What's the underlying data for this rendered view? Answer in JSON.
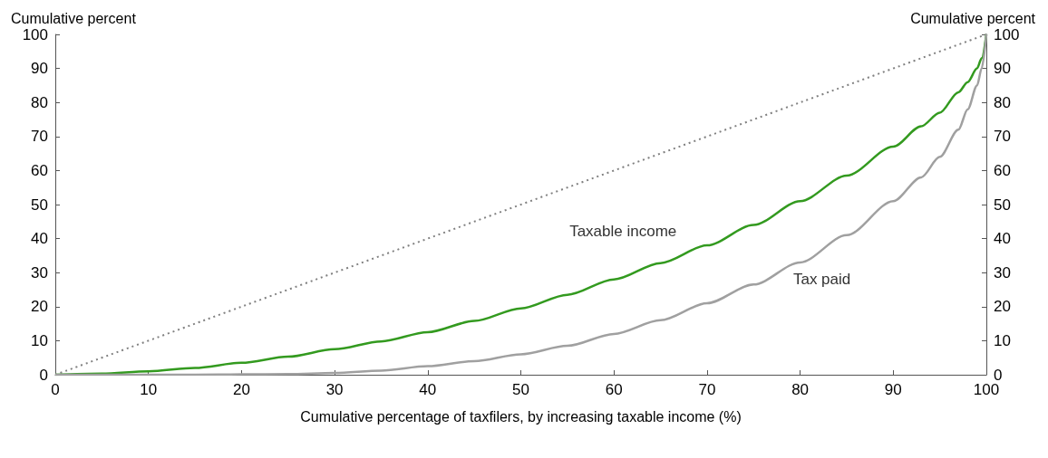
{
  "chart_data": {
    "type": "line",
    "xlabel": "Cumulative percentage of taxfilers, by increasing taxable income (%)",
    "ylabel": "Cumulative percent",
    "y2label": "Cumulative percent",
    "xlim": [
      0,
      100
    ],
    "xticks": [
      0,
      10,
      20,
      30,
      40,
      50,
      60,
      70,
      80,
      90,
      100
    ],
    "ylim": [
      0,
      100
    ],
    "yticks": [
      0,
      10,
      20,
      30,
      40,
      50,
      60,
      70,
      80,
      90,
      100
    ],
    "y2lim": [
      0,
      100
    ],
    "y2ticks": [
      0,
      10,
      20,
      30,
      40,
      50,
      60,
      70,
      80,
      90,
      100
    ],
    "grid": false,
    "legend": false,
    "marker": "none",
    "series": [
      {
        "name": "Taxable income",
        "color": "#339a1f",
        "line_style": "solid",
        "x": [
          0,
          5,
          10,
          15,
          20,
          25,
          30,
          35,
          40,
          45,
          50,
          55,
          60,
          65,
          70,
          75,
          80,
          85,
          90,
          93,
          95,
          97,
          98,
          99,
          99.5,
          100
        ],
        "values": [
          0,
          0.3,
          1,
          2,
          3.5,
          5.3,
          7.5,
          9.8,
          12.5,
          15.8,
          19.5,
          23.5,
          28,
          32.8,
          38,
          44,
          51,
          58.5,
          67,
          73,
          77,
          83,
          86,
          90,
          93,
          100
        ]
      },
      {
        "name": "Tax paid",
        "color": "#a0a0a0",
        "line_style": "solid",
        "x": [
          0,
          5,
          10,
          15,
          20,
          25,
          30,
          35,
          40,
          45,
          50,
          55,
          60,
          65,
          70,
          75,
          80,
          85,
          90,
          93,
          95,
          97,
          98,
          99,
          99.5,
          100
        ],
        "values": [
          0,
          0,
          0,
          0,
          0.1,
          0.2,
          0.5,
          1.2,
          2.5,
          4,
          6,
          8.5,
          12,
          16,
          21,
          26.5,
          33,
          41,
          51,
          58,
          64,
          72,
          78,
          85,
          90,
          100
        ]
      },
      {
        "color": "#808080",
        "line_style": "dotted",
        "x": [
          0,
          100
        ],
        "values": [
          0,
          100
        ]
      }
    ]
  }
}
